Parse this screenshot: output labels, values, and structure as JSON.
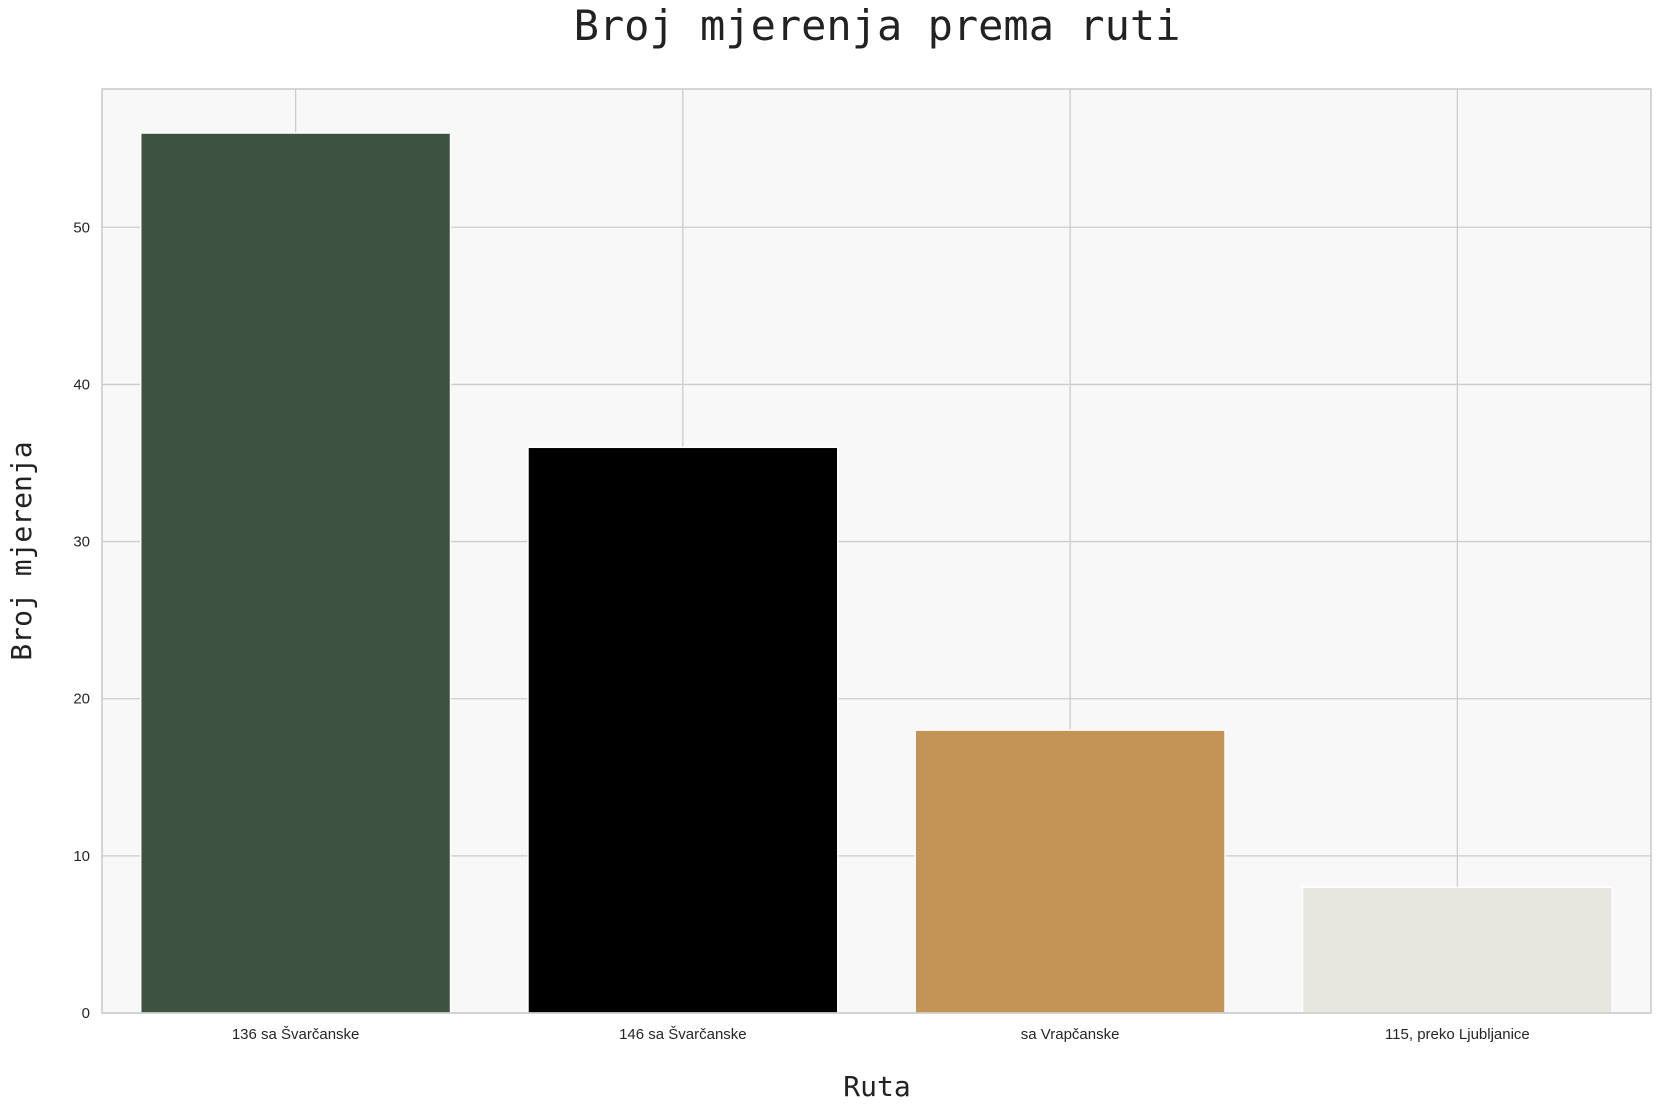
{
  "chart_data": {
    "type": "bar",
    "title": "Broj mjerenja prema ruti",
    "xlabel": "Ruta",
    "ylabel": "Broj mjerenja",
    "categories": [
      "136 sa Švarčanske",
      "146 sa Švarčanske",
      "sa Vrapčanske",
      "115, preko Ljubljanice"
    ],
    "values": [
      56,
      36,
      18,
      8
    ],
    "colors": [
      "#3d5240",
      "#000000",
      "#c39455",
      "#e7e6df"
    ],
    "ylim": [
      0,
      58.8
    ],
    "yticks": [
      0,
      10,
      20,
      30,
      40,
      50
    ],
    "grid": true,
    "legend": "none",
    "plot_background": "#f8f8f8",
    "grid_color": "#cccccc"
  }
}
